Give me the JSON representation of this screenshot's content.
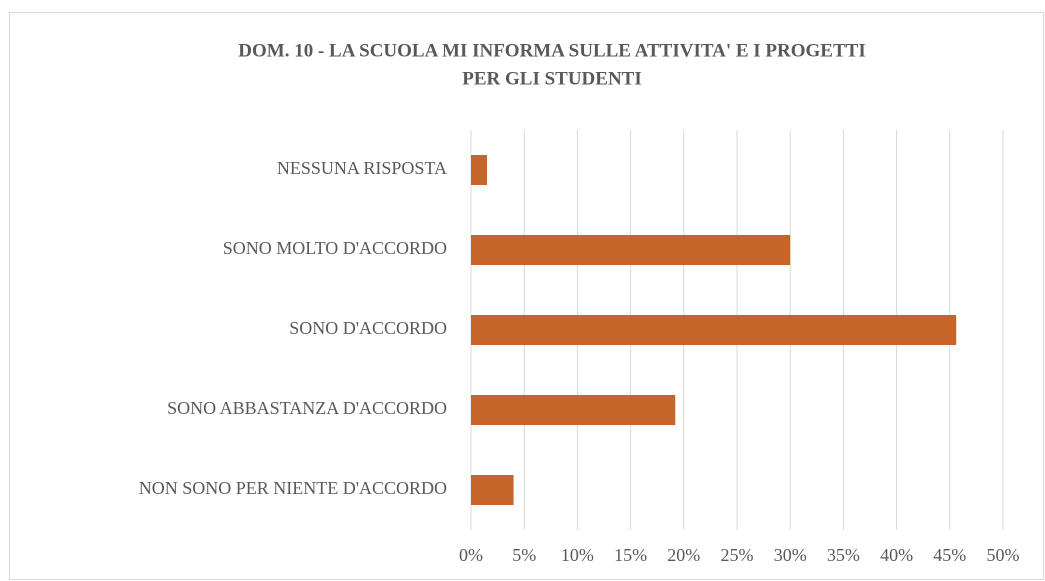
{
  "chart_data": {
    "type": "bar",
    "orientation": "horizontal",
    "title": [
      "DOM. 10 - LA SCUOLA MI INFORMA SULLE ATTIVITA' E I PROGETTI",
      "PER GLI STUDENTI"
    ],
    "categories": [
      "NESSUNA RISPOSTA",
      "SONO MOLTO D'ACCORDO",
      "SONO D'ACCORDO",
      "SONO ABBASTANZA D'ACCORDO",
      "NON SONO PER NIENTE D'ACCORDO"
    ],
    "values": [
      1.5,
      30,
      45.6,
      19.2,
      4
    ],
    "color": "#c5652a",
    "xlim": [
      0,
      50
    ],
    "xticks": [
      {
        "value": 0,
        "label": "0%"
      },
      {
        "value": 5,
        "label": "5%"
      },
      {
        "value": 10,
        "label": "10%"
      },
      {
        "value": 15,
        "label": "15%"
      },
      {
        "value": 20,
        "label": "20%"
      },
      {
        "value": 25,
        "label": "25%"
      },
      {
        "value": 30,
        "label": "30%"
      },
      {
        "value": 35,
        "label": "35%"
      },
      {
        "value": 40,
        "label": "40%"
      },
      {
        "value": 45,
        "label": "45%"
      },
      {
        "value": 50,
        "label": "50%"
      }
    ],
    "grid": true
  }
}
